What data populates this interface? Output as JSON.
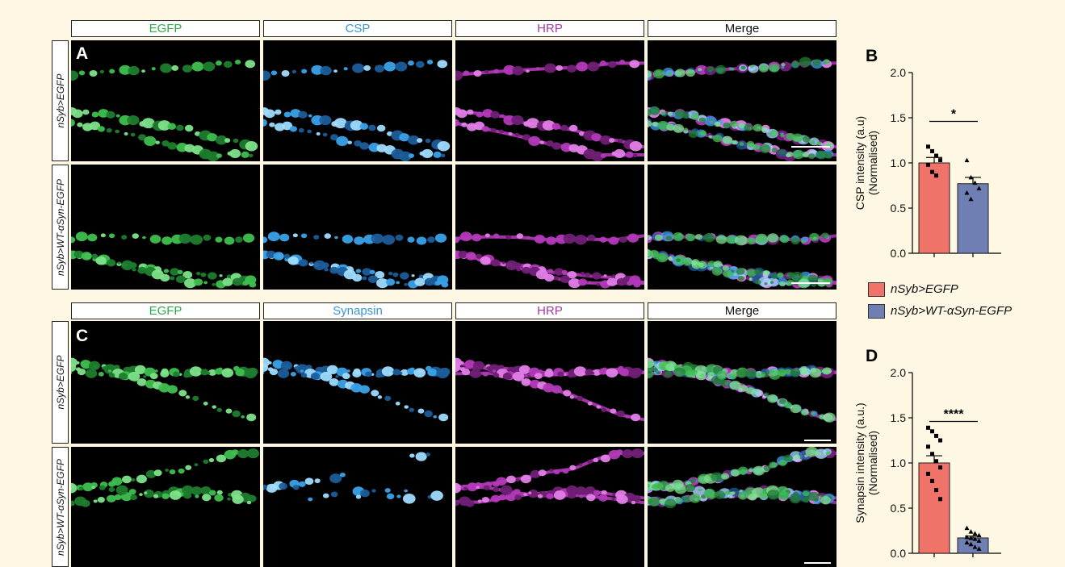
{
  "figure": {
    "top_section": {
      "panel_label": "A",
      "columns": [
        "EGFP",
        "CSP",
        "HRP",
        "Merge"
      ],
      "rows": [
        "nSyb>EGFP",
        "nSyb>WT-αSyn-EGFP"
      ]
    },
    "bottom_section": {
      "panel_label": "C",
      "columns": [
        "EGFP",
        "Synapsin",
        "HRP",
        "Merge"
      ],
      "rows": [
        "nSyb>EGFP",
        "nSyb>WT-αSyn-EGFP"
      ]
    },
    "column_colors": {
      "EGFP": "#2ea84a",
      "CSP": "#3a96d6",
      "Synapsin": "#3a96d6",
      "HRP": "#a23aa6",
      "Merge": "#111111"
    },
    "legend": [
      {
        "label": "nSyb>EGFP",
        "color": "#f0736a"
      },
      {
        "label": "nSyb>WT-αSyn-EGFP",
        "color": "#6f7fb3"
      }
    ]
  },
  "chart_data": [
    {
      "panel": "B",
      "type": "bar",
      "categories": [
        "nSyb>EGFP",
        "nSyb>WT-αSyn-EGFP"
      ],
      "values": [
        1.0,
        0.77
      ],
      "errors": [
        0.06,
        0.07
      ],
      "ylabel_line1": "CSP intensity (a.u)",
      "ylabel_line2": "(Normalised)",
      "ylim": [
        0,
        2.0
      ],
      "yticks": [
        "0.0",
        "0.5",
        "1.0",
        "1.5",
        "2.0"
      ],
      "significance": "*",
      "points": [
        [
          1.18,
          1.13,
          1.08,
          1.03,
          0.98,
          0.9,
          0.86
        ],
        [
          1.03,
          0.84,
          0.78,
          0.72,
          0.67,
          0.6
        ]
      ],
      "colors": [
        "#f0736a",
        "#6f7fb3"
      ]
    },
    {
      "panel": "D",
      "type": "bar",
      "categories": [
        "nSyb>EGFP",
        "nSyb>WT-αSyn-EGFP"
      ],
      "values": [
        1.0,
        0.17
      ],
      "errors": [
        0.08,
        0.02
      ],
      "ylabel_line1": "Synapsin intensity (a.u.)",
      "ylabel_line2": "(Normalised)",
      "ylim": [
        0,
        2.0
      ],
      "yticks": [
        "0.0",
        "0.5",
        "1.0",
        "1.5",
        "2.0"
      ],
      "significance": "****",
      "points": [
        [
          1.39,
          1.35,
          1.3,
          1.25,
          1.18,
          1.1,
          1.02,
          0.95,
          0.88,
          0.8,
          0.7,
          0.6
        ],
        [
          0.28,
          0.24,
          0.22,
          0.2,
          0.18,
          0.17,
          0.16,
          0.14,
          0.12,
          0.1,
          0.07,
          0.05
        ]
      ],
      "colors": [
        "#f0736a",
        "#6f7fb3"
      ]
    }
  ]
}
